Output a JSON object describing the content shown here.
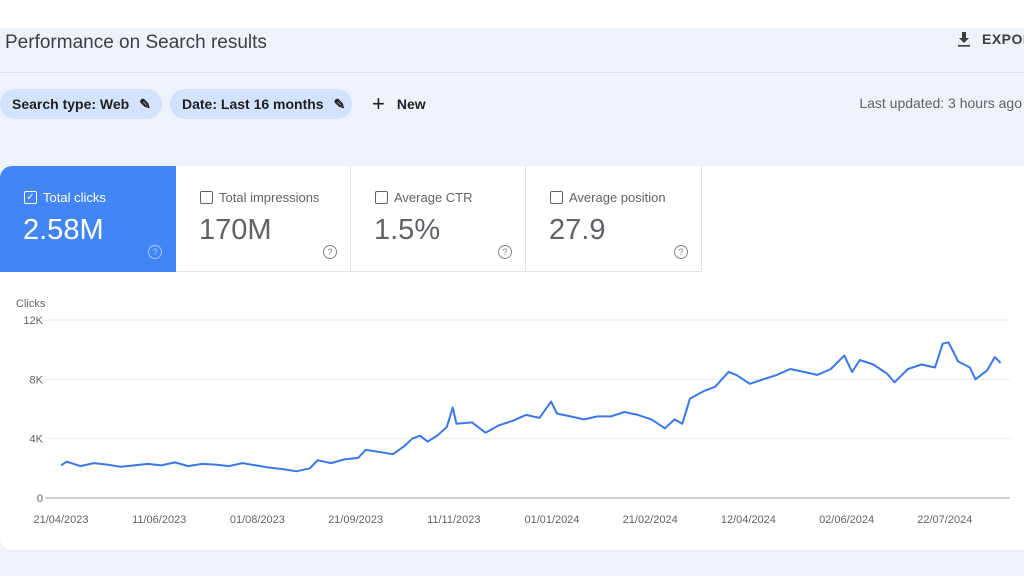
{
  "header": {
    "title": "Performance on Search results",
    "export_label": "EXPORT"
  },
  "filters": {
    "search_type": "Search type: Web",
    "date": "Date: Last 16 months",
    "new_label": "New",
    "last_updated": "Last updated: 3 hours ago"
  },
  "metrics": [
    {
      "label": "Total clicks",
      "value": "2.58M",
      "checked": true
    },
    {
      "label": "Total impressions",
      "value": "170M",
      "checked": false
    },
    {
      "label": "Average CTR",
      "value": "1.5%",
      "checked": false
    },
    {
      "label": "Average position",
      "value": "27.9",
      "checked": false
    }
  ],
  "colors": {
    "accent": "#4285f4",
    "chip": "#d3e3fd",
    "line": "#3b78e7"
  },
  "chart_data": {
    "type": "line",
    "title": "",
    "ylabel": "Clicks",
    "xlabel": "",
    "ylim": [
      0,
      12000
    ],
    "y_ticks": [
      "0",
      "4K",
      "8K",
      "12K"
    ],
    "y_tick_values": [
      0,
      4000,
      8000,
      12000
    ],
    "x_ticks": [
      "21/04/2023",
      "11/06/2023",
      "01/08/2023",
      "21/09/2023",
      "11/11/2023",
      "01/01/2024",
      "21/02/2024",
      "12/04/2024",
      "02/06/2024",
      "22/07/2024"
    ],
    "grid": true,
    "legend": "none",
    "series": [
      {
        "values": [
          [
            "2023-04-21",
            2200
          ],
          [
            "2023-04-24",
            2450
          ],
          [
            "2023-05-01",
            2150
          ],
          [
            "2023-05-08",
            2350
          ],
          [
            "2023-05-15",
            2250
          ],
          [
            "2023-05-22",
            2100
          ],
          [
            "2023-05-29",
            2200
          ],
          [
            "2023-06-05",
            2300
          ],
          [
            "2023-06-12",
            2200
          ],
          [
            "2023-06-19",
            2400
          ],
          [
            "2023-06-26",
            2150
          ],
          [
            "2023-07-03",
            2300
          ],
          [
            "2023-07-10",
            2250
          ],
          [
            "2023-07-17",
            2150
          ],
          [
            "2023-07-24",
            2350
          ],
          [
            "2023-07-31",
            2200
          ],
          [
            "2023-08-07",
            2050
          ],
          [
            "2023-08-14",
            1950
          ],
          [
            "2023-08-21",
            1800
          ],
          [
            "2023-08-28",
            2000
          ],
          [
            "2023-09-01",
            2550
          ],
          [
            "2023-09-08",
            2350
          ],
          [
            "2023-09-15",
            2600
          ],
          [
            "2023-09-22",
            2700
          ],
          [
            "2023-09-26",
            3250
          ],
          [
            "2023-10-03",
            3100
          ],
          [
            "2023-10-10",
            2950
          ],
          [
            "2023-10-16",
            3500
          ],
          [
            "2023-10-20",
            4000
          ],
          [
            "2023-10-24",
            4200
          ],
          [
            "2023-10-28",
            3800
          ],
          [
            "2023-11-02",
            4200
          ],
          [
            "2023-11-07",
            4800
          ],
          [
            "2023-11-10",
            6100
          ],
          [
            "2023-11-12",
            5000
          ],
          [
            "2023-11-20",
            5100
          ],
          [
            "2023-11-27",
            4400
          ],
          [
            "2023-12-04",
            4900
          ],
          [
            "2023-12-11",
            5200
          ],
          [
            "2023-12-18",
            5600
          ],
          [
            "2023-12-25",
            5400
          ],
          [
            "2023-12-31",
            6500
          ],
          [
            "2024-01-03",
            5700
          ],
          [
            "2024-01-10",
            5500
          ],
          [
            "2024-01-17",
            5300
          ],
          [
            "2024-01-24",
            5500
          ],
          [
            "2024-01-31",
            5500
          ],
          [
            "2024-02-07",
            5800
          ],
          [
            "2024-02-14",
            5600
          ],
          [
            "2024-02-21",
            5300
          ],
          [
            "2024-02-28",
            4700
          ],
          [
            "2024-03-04",
            5300
          ],
          [
            "2024-03-08",
            5000
          ],
          [
            "2024-03-12",
            6700
          ],
          [
            "2024-03-19",
            7200
          ],
          [
            "2024-03-25",
            7500
          ],
          [
            "2024-04-01",
            8500
          ],
          [
            "2024-04-05",
            8300
          ],
          [
            "2024-04-12",
            7700
          ],
          [
            "2024-04-19",
            8000
          ],
          [
            "2024-04-26",
            8300
          ],
          [
            "2024-05-03",
            8700
          ],
          [
            "2024-05-10",
            8500
          ],
          [
            "2024-05-17",
            8300
          ],
          [
            "2024-05-24",
            8700
          ],
          [
            "2024-05-31",
            9600
          ],
          [
            "2024-06-04",
            8500
          ],
          [
            "2024-06-08",
            9300
          ],
          [
            "2024-06-15",
            9000
          ],
          [
            "2024-06-22",
            8400
          ],
          [
            "2024-06-26",
            7800
          ],
          [
            "2024-07-03",
            8700
          ],
          [
            "2024-07-10",
            9000
          ],
          [
            "2024-07-17",
            8800
          ],
          [
            "2024-07-21",
            10400
          ],
          [
            "2024-07-24",
            10500
          ],
          [
            "2024-07-29",
            9200
          ],
          [
            "2024-08-04",
            8800
          ],
          [
            "2024-08-07",
            8000
          ],
          [
            "2024-08-13",
            8600
          ],
          [
            "2024-08-17",
            9500
          ],
          [
            "2024-08-20",
            9100
          ]
        ]
      }
    ]
  }
}
